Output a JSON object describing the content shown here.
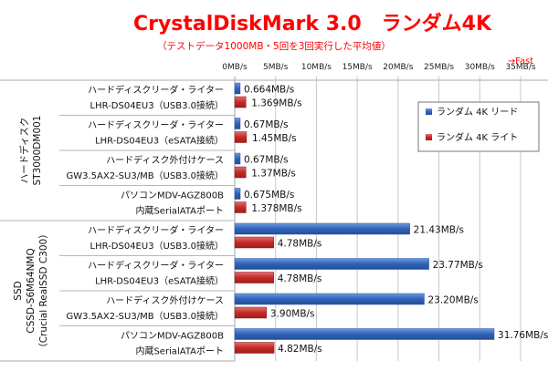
{
  "chart_data": {
    "type": "bar",
    "orientation": "horizontal",
    "title": "CrystalDiskMark 3.0　ランダム4K",
    "subtitle": "（テストデータ1000MB・5回を3回実行した平均値）",
    "annotation": "→Fast",
    "xlim": [
      0,
      35
    ],
    "x_ticks": [
      0,
      5,
      10,
      15,
      20,
      25,
      30,
      35
    ],
    "x_tick_labels": [
      "0MB/s",
      "5MB/s",
      "10MB/s",
      "15MB/s",
      "20MB/s",
      "25MB/s",
      "30MB/s",
      "35MB/s"
    ],
    "grid": true,
    "legend_position": "right",
    "groups": [
      {
        "label_lines": [
          "ハードディスク",
          "ST3000DM001"
        ]
      },
      {
        "label_lines": [
          "SSD",
          "CSSD-S6M64NMQ",
          "（Crucial RealSSD C300）"
        ]
      }
    ],
    "categories": [
      {
        "group": 0,
        "lines": [
          "ハードディスクリーダ・ライター",
          "LHR-DS04EU3（USB3.0接続）"
        ]
      },
      {
        "group": 0,
        "lines": [
          "ハードディスクリーダ・ライター",
          "LHR-DS04EU3（eSATA接続）"
        ]
      },
      {
        "group": 0,
        "lines": [
          "ハードディスク外付けケース",
          "GW3.5AX2-SU3/MB（USB3.0接続）"
        ]
      },
      {
        "group": 0,
        "lines": [
          "パソコンMDV-AGZ800B",
          "内蔵SerialATAポート"
        ]
      },
      {
        "group": 1,
        "lines": [
          "ハードディスクリーダ・ライター",
          "LHR-DS04EU3（USB3.0接続）"
        ]
      },
      {
        "group": 1,
        "lines": [
          "ハードディスクリーダ・ライター",
          "LHR-DS04EU3（eSATA接続）"
        ]
      },
      {
        "group": 1,
        "lines": [
          "ハードディスク外付けケース",
          "GW3.5AX2-SU3/MB（USB3.0接続）"
        ]
      },
      {
        "group": 1,
        "lines": [
          "パソコンMDV-AGZ800B",
          "内蔵SerialATAポート"
        ]
      }
    ],
    "series": [
      {
        "name": "ランダム 4K リード",
        "color": "#3a6fc4",
        "values": [
          0.664,
          0.67,
          0.67,
          0.675,
          21.43,
          23.77,
          23.2,
          31.76
        ],
        "labels": [
          "0.664MB/s",
          "0.67MB/s",
          "0.67MB/s",
          "0.675MB/s",
          "21.43MB/s",
          "23.77MB/s",
          "23.20MB/s",
          "31.76MB/s"
        ]
      },
      {
        "name": "ランダム 4K ライト",
        "color": "#c9302c",
        "values": [
          1.369,
          1.45,
          1.37,
          1.378,
          4.78,
          4.78,
          3.9,
          4.82
        ],
        "labels": [
          "1.369MB/s",
          "1.45MB/s",
          "1.37MB/s",
          "1.378MB/s",
          "4.78MB/s",
          "4.78MB/s",
          "3.90MB/s",
          "4.82MB/s"
        ]
      }
    ]
  }
}
